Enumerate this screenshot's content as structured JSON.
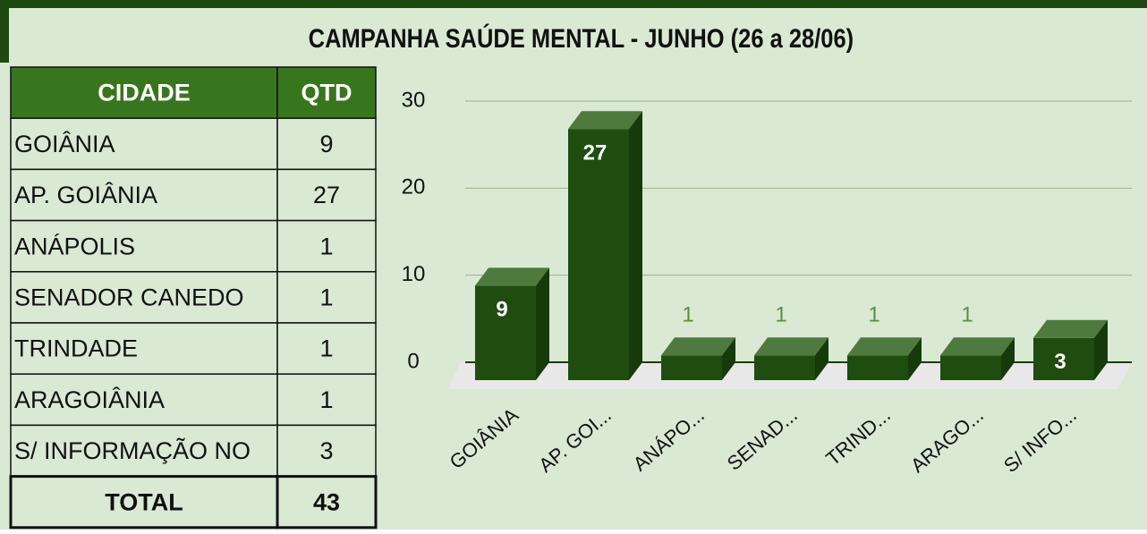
{
  "title": "CAMPANHA SAÚDE MENTAL - JUNHO (26 a 28/06)",
  "table": {
    "headers": [
      "CIDADE",
      "QTD"
    ],
    "rows": [
      [
        "GOIÂNIA",
        9
      ],
      [
        "AP. GOIÂNIA",
        27
      ],
      [
        "ANÁPOLIS",
        1
      ],
      [
        "SENADOR CANEDO",
        1
      ],
      [
        "TRINDADE",
        1
      ],
      [
        "ARAGOIÂNIA",
        1
      ],
      [
        "S/ INFORMAÇÃO NO",
        3
      ]
    ],
    "total": [
      "TOTAL",
      43
    ]
  },
  "chart_data": {
    "type": "bar",
    "categories": [
      "GOIÂNIA",
      "AP. GOI...",
      "ANÁPO...",
      "SENAD...",
      "TRIND...",
      "ARAGO...",
      "S/ INFO..."
    ],
    "values": [
      9,
      27,
      1,
      1,
      1,
      1,
      3
    ],
    "color": "#1f4d10",
    "ylim": [
      0,
      30
    ],
    "yticks": [
      0,
      10,
      20,
      30
    ],
    "grid": true
  }
}
